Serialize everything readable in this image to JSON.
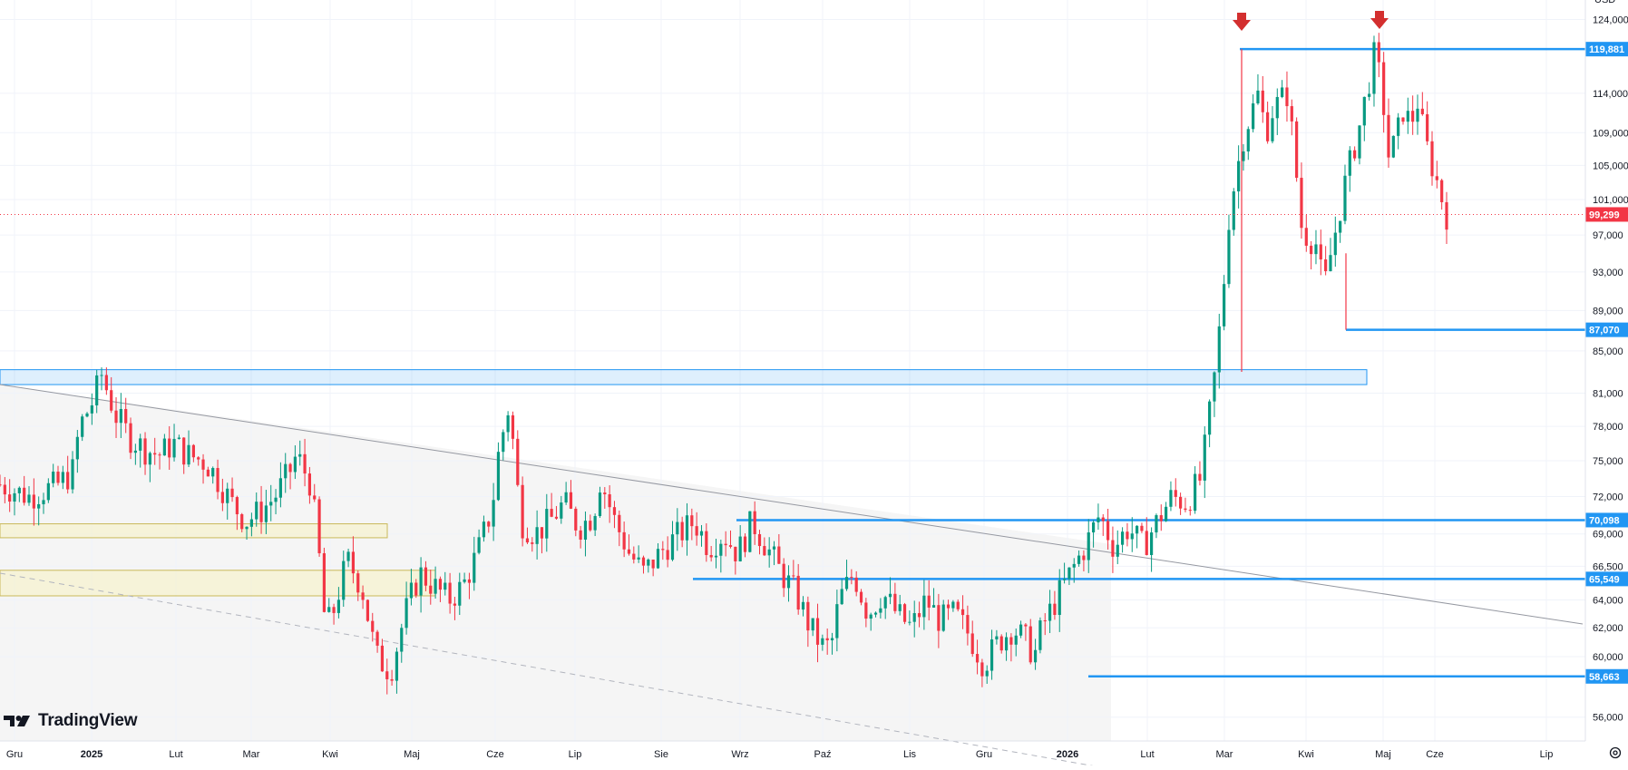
{
  "chart_data": {
    "type": "candlestick",
    "symbol_currency": "USD",
    "x_ticks": [
      {
        "label": "Gru",
        "bold": false
      },
      {
        "label": "2025",
        "bold": true
      },
      {
        "label": "Lut",
        "bold": false
      },
      {
        "label": "Mar",
        "bold": false
      },
      {
        "label": "Kwi",
        "bold": false
      },
      {
        "label": "Maj",
        "bold": false
      },
      {
        "label": "Cze",
        "bold": false
      },
      {
        "label": "Lip",
        "bold": false
      },
      {
        "label": "Sie",
        "bold": false
      },
      {
        "label": "Wrz",
        "bold": false
      },
      {
        "label": "Paź",
        "bold": false
      },
      {
        "label": "Lis",
        "bold": false
      },
      {
        "label": "Gru",
        "bold": false
      },
      {
        "label": "2026",
        "bold": true
      },
      {
        "label": "Lut",
        "bold": false
      },
      {
        "label": "Mar",
        "bold": false
      },
      {
        "label": "Kwi",
        "bold": false
      },
      {
        "label": "Maj",
        "bold": false
      },
      {
        "label": "Cze",
        "bold": false
      },
      {
        "label": "Lip",
        "bold": false
      }
    ],
    "y_ticks": [
      "124,000",
      "114,000",
      "109,000",
      "105,000",
      "101,000",
      "97,000",
      "93,000",
      "89,000",
      "85,000",
      "81,000",
      "78,000",
      "75,000",
      "72,000",
      "69,000",
      "66,500",
      "64,000",
      "62,000",
      "60,000",
      "56,000"
    ],
    "y_range": [
      54500,
      126000
    ],
    "y_scale": "log",
    "grid": true,
    "current_price": {
      "value": 99299,
      "label": "99,299",
      "color": "#f23645"
    },
    "horizontal_levels": [
      {
        "value": 119881,
        "label": "119,881"
      },
      {
        "value": 87070,
        "label": "87,070"
      },
      {
        "value": 70098,
        "label": "70,098"
      },
      {
        "value": 65549,
        "label": "65,549"
      },
      {
        "value": 58663,
        "label": "58,663"
      }
    ],
    "zones": [
      {
        "low": 81800,
        "high": 83200,
        "color": "blue"
      },
      {
        "low": 68700,
        "high": 69800,
        "color": "yellow"
      },
      {
        "low": 64300,
        "high": 66200,
        "color": "yellow"
      }
    ],
    "trendlines": [
      "descending resistance (solid)",
      "descending support (dashed)"
    ],
    "markers": [
      "down-arrow at March 2026 peak",
      "down-arrow at May 2026 peak"
    ],
    "price_path": [
      [
        0,
        73000
      ],
      [
        0.02,
        72000
      ],
      [
        0.04,
        73000
      ],
      [
        0.05,
        74000
      ],
      [
        0.055,
        78000
      ],
      [
        0.065,
        80500
      ],
      [
        0.07,
        82800
      ],
      [
        0.08,
        79000
      ],
      [
        0.09,
        77000
      ],
      [
        0.1,
        76000
      ],
      [
        0.11,
        75500
      ],
      [
        0.12,
        76500
      ],
      [
        0.13,
        75500
      ],
      [
        0.14,
        75000
      ],
      [
        0.145,
        74500
      ],
      [
        0.16,
        71500
      ],
      [
        0.17,
        70000
      ],
      [
        0.18,
        70800
      ],
      [
        0.19,
        72000
      ],
      [
        0.2,
        74000
      ],
      [
        0.205,
        75500
      ],
      [
        0.215,
        73000
      ],
      [
        0.22,
        68000
      ],
      [
        0.225,
        62000
      ],
      [
        0.23,
        63000
      ],
      [
        0.24,
        67000
      ],
      [
        0.25,
        65000
      ],
      [
        0.26,
        60000
      ],
      [
        0.27,
        59000
      ],
      [
        0.28,
        63000
      ],
      [
        0.29,
        66000
      ],
      [
        0.3,
        65000
      ],
      [
        0.31,
        64000
      ],
      [
        0.32,
        65000
      ],
      [
        0.33,
        67500
      ],
      [
        0.34,
        71000
      ],
      [
        0.345,
        76000
      ],
      [
        0.352,
        80000
      ],
      [
        0.36,
        70000
      ],
      [
        0.37,
        69000
      ],
      [
        0.38,
        70000
      ],
      [
        0.39,
        71500
      ],
      [
        0.4,
        69500
      ],
      [
        0.41,
        70500
      ],
      [
        0.415,
        73500
      ],
      [
        0.425,
        70000
      ],
      [
        0.435,
        67500
      ],
      [
        0.445,
        66000
      ],
      [
        0.46,
        68000
      ],
      [
        0.47,
        69000
      ],
      [
        0.48,
        70000
      ],
      [
        0.49,
        68000
      ],
      [
        0.5,
        69000
      ],
      [
        0.51,
        67500
      ],
      [
        0.52,
        70000
      ],
      [
        0.53,
        68000
      ],
      [
        0.54,
        66000
      ],
      [
        0.55,
        64500
      ],
      [
        0.56,
        62000
      ],
      [
        0.57,
        60500
      ],
      [
        0.575,
        61000
      ],
      [
        0.58,
        64000
      ],
      [
        0.59,
        66000
      ],
      [
        0.6,
        63000
      ],
      [
        0.61,
        64500
      ],
      [
        0.62,
        63000
      ],
      [
        0.63,
        62000
      ],
      [
        0.64,
        64000
      ],
      [
        0.65,
        62500
      ],
      [
        0.66,
        63000
      ],
      [
        0.67,
        61500
      ],
      [
        0.68,
        59500
      ],
      [
        0.69,
        61000
      ],
      [
        0.7,
        62000
      ],
      [
        0.71,
        61000
      ],
      [
        0.715,
        60000
      ],
      [
        0.72,
        62000
      ],
      [
        0.73,
        64000
      ],
      [
        0.74,
        66000
      ],
      [
        0.75,
        68000
      ],
      [
        0.76,
        70500
      ],
      [
        0.77,
        68000
      ],
      [
        0.78,
        69500
      ],
      [
        0.79,
        68000
      ],
      [
        0.8,
        70000
      ],
      [
        0.81,
        72000
      ],
      [
        0.82,
        71500
      ],
      [
        0.83,
        73500
      ],
      [
        0.835,
        78000
      ],
      [
        0.84,
        83000
      ],
      [
        0.845,
        90000
      ],
      [
        0.85,
        100000
      ],
      [
        0.86,
        109000
      ],
      [
        0.87,
        114000
      ],
      [
        0.875,
        109000
      ],
      [
        0.88,
        112000
      ],
      [
        0.89,
        114000
      ],
      [
        0.895,
        106000
      ],
      [
        0.9,
        97500
      ],
      [
        0.91,
        96000
      ],
      [
        0.915,
        91000
      ],
      [
        0.92,
        95000
      ],
      [
        0.93,
        103000
      ],
      [
        0.94,
        110000
      ],
      [
        0.95,
        119000
      ],
      [
        0.955,
        115000
      ],
      [
        0.96,
        106000
      ],
      [
        0.965,
        108000
      ],
      [
        0.97,
        112000
      ],
      [
        0.975,
        110000
      ],
      [
        0.98,
        113000
      ],
      [
        0.985,
        108000
      ],
      [
        0.99,
        105000
      ],
      [
        1,
        99299
      ]
    ]
  },
  "branding": {
    "logo_text": "TradingView"
  }
}
